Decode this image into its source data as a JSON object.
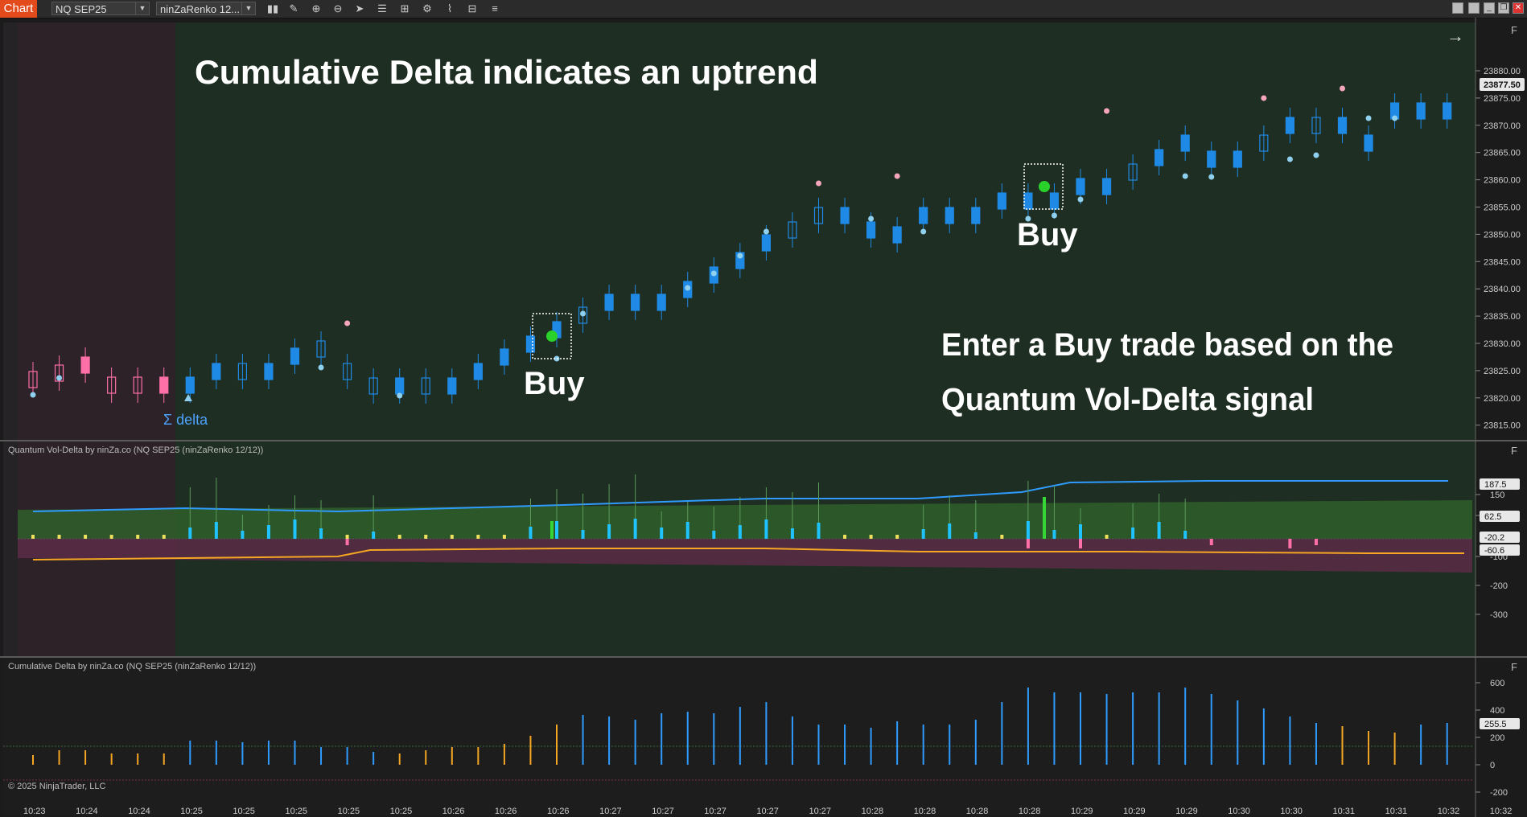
{
  "toolbar": {
    "chart_tab": "Chart",
    "instrument": "NQ SEP25",
    "bar_type": "ninZaRenko 12...",
    "tools": [
      "bars-icon",
      "pencil-icon",
      "zoom-in-icon",
      "zoom-out-icon",
      "pointer-icon",
      "data-box-icon",
      "chart-trader-icon",
      "properties-icon",
      "drawing-tools-icon",
      "strategies-icon",
      "indicators-icon"
    ]
  },
  "annotations": {
    "headline": "Cumulative Delta indicates an uptrend",
    "buy_1": "Buy",
    "buy_2": "Buy",
    "enter_line1": "Enter a Buy trade based on the",
    "enter_line2": "Quantum Vol-Delta signal",
    "sigma_delta": "Σ delta"
  },
  "panels": {
    "price": {
      "price_labels": [
        "23880.00",
        "23875.00",
        "23870.00",
        "23865.00",
        "23860.00",
        "23855.00",
        "23850.00",
        "23845.00",
        "23840.00",
        "23835.00",
        "23830.00",
        "23825.00",
        "23820.00",
        "23815.00"
      ],
      "last_price": "23877.50",
      "f_label": "F"
    },
    "vol_delta": {
      "title": "Quantum Vol-Delta by ninZa.co (NQ SEP25 (ninZaRenko 12/12))",
      "axis_labels": [
        "150",
        "100",
        "-100",
        "-200",
        "-300"
      ],
      "badges": [
        "187.5",
        "62.5",
        "-20.2",
        "-60.6"
      ],
      "f_label": "F"
    },
    "cum_delta": {
      "title": "Cumulative Delta by ninZa.co (NQ SEP25 (ninZaRenko 12/12))",
      "axis_labels": [
        "600",
        "400",
        "200",
        "0",
        "-200"
      ],
      "badge": "255.5",
      "f_label": "F"
    }
  },
  "copyright": "© 2025 NinjaTrader, LLC",
  "time_labels": [
    "10:23",
    "10:24",
    "10:24",
    "10:25",
    "10:25",
    "10:25",
    "10:25",
    "10:25",
    "10:26",
    "10:26",
    "10:26",
    "10:27",
    "10:27",
    "10:27",
    "10:27",
    "10:27",
    "10:28",
    "10:28",
    "10:28",
    "10:28",
    "10:29",
    "10:29",
    "10:29",
    "10:30",
    "10:30",
    "10:31",
    "10:31",
    "10:32",
    "10:32"
  ],
  "colors": {
    "bull": "#1e8ae6",
    "bear": "#ff6fa8",
    "bg_green": "#1f2e22",
    "bg_red": "#2d2228",
    "dot_blue": "#8fd0ee",
    "dot_pink": "#f5a6b8",
    "buy_dot": "#2ad12a",
    "accent_orange": "#e34a1c"
  }
}
